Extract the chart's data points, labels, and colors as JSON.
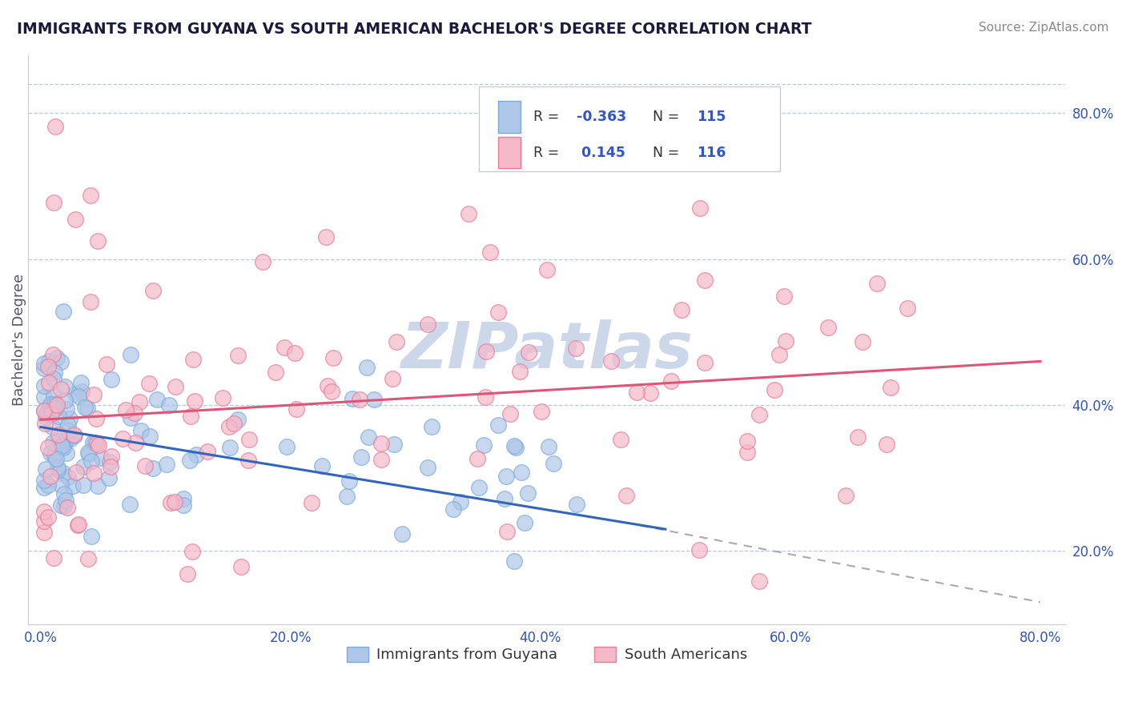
{
  "title": "IMMIGRANTS FROM GUYANA VS SOUTH AMERICAN BACHELOR'S DEGREE CORRELATION CHART",
  "source_text": "Source: ZipAtlas.com",
  "ylabel_left": "Bachelor's Degree",
  "x_tick_labels": [
    "0.0%",
    "20.0%",
    "40.0%",
    "60.0%",
    "80.0%"
  ],
  "y_tick_labels_right": [
    "20.0%",
    "40.0%",
    "60.0%",
    "80.0%"
  ],
  "legend_label1": "Immigrants from Guyana",
  "legend_label2": "South Americans",
  "blue_color": "#aec6e8",
  "pink_color": "#f5b8c8",
  "blue_edge": "#7aabdb",
  "pink_edge": "#e87a9a",
  "line_blue": "#3366bb",
  "line_pink": "#dd5577",
  "line_dash": "#aaaaaa",
  "watermark": "ZIPatlas",
  "watermark_color": "#ccd8ea",
  "blue_r": "-0.363",
  "blue_n": "115",
  "pink_r": "0.145",
  "pink_n": "116"
}
